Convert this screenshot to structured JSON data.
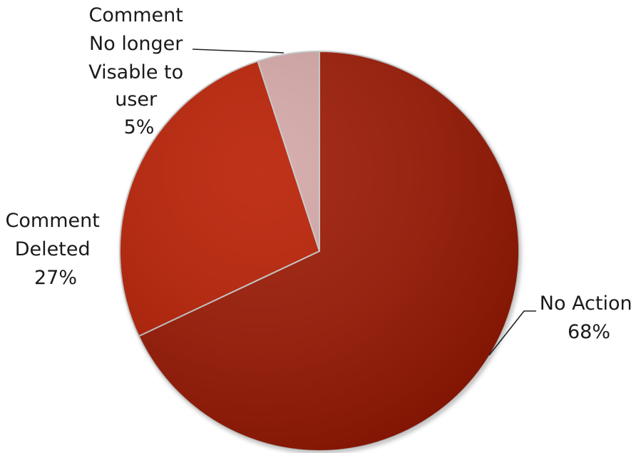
{
  "chart_data": {
    "type": "pie",
    "title": "",
    "slices": [
      {
        "label_lines": [
          "No Action"
        ],
        "value": 68,
        "value_label": "68%",
        "color": "#9a1404"
      },
      {
        "label_lines": [
          "Comment",
          "Deleted"
        ],
        "value": 27,
        "value_label": "27%",
        "color": "#b81c05"
      },
      {
        "label_lines": [
          "Comment",
          "No longer",
          "Visable to",
          "user"
        ],
        "value": 5,
        "value_label": "5%",
        "color": "#d4a6a6"
      }
    ],
    "start_angle_deg": 0,
    "direction": "clockwise",
    "legend": "none",
    "data_labels": "outside"
  }
}
